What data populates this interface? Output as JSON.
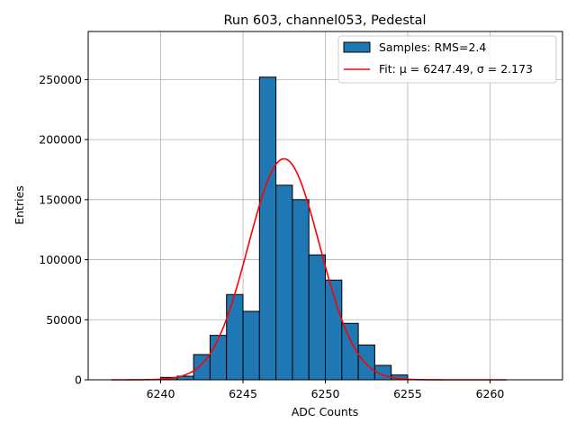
{
  "chart_data": {
    "type": "bar",
    "title": "Run 603, channel053, Pedestal",
    "xlabel": "ADC Counts",
    "ylabel": "Entries",
    "xlim": [
      6235.6,
      6264.4
    ],
    "ylim": [
      0,
      290000
    ],
    "grid": true,
    "legend_position": "top-right",
    "xticks": [
      6240,
      6245,
      6250,
      6255,
      6260
    ],
    "yticks": [
      0,
      50000,
      100000,
      150000,
      200000,
      250000
    ],
    "bin_width": 1,
    "bin_starts": [
      6240,
      6241,
      6242,
      6243,
      6244,
      6245,
      6246,
      6247,
      6248,
      6249,
      6250,
      6251,
      6252,
      6253,
      6254
    ],
    "values": [
      2000,
      3000,
      21000,
      37000,
      71000,
      57000,
      252000,
      162000,
      150000,
      104000,
      83000,
      47000,
      29000,
      12000,
      4000
    ],
    "bar_color": "#1f77b4",
    "fit": {
      "mu": 6247.49,
      "sigma": 2.173,
      "peak": 184000,
      "x_range": [
        6237,
        6261
      ],
      "color": "#ff0000"
    },
    "legend": [
      {
        "label": "Samples: RMS=2.4",
        "kind": "patch",
        "color": "#1f77b4"
      },
      {
        "label": "Fit: μ = 6247.49, σ = 2.173",
        "kind": "line",
        "color": "#ff0000"
      }
    ]
  }
}
